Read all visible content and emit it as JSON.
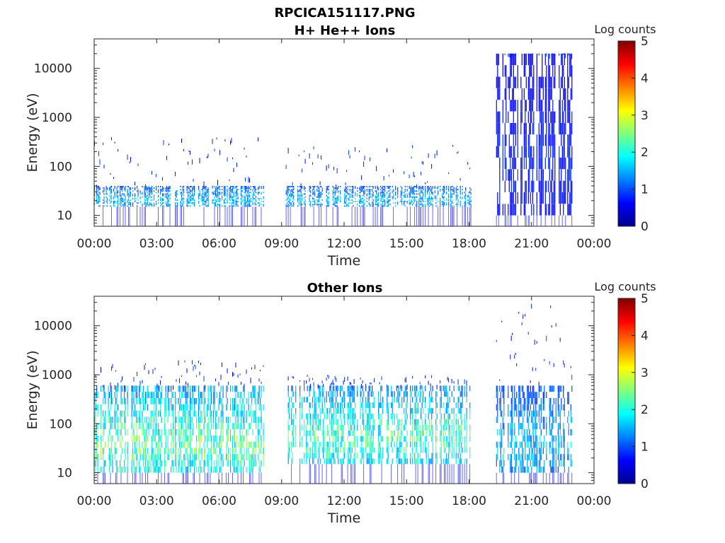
{
  "figure": {
    "title_line1": "RPCICA151117.PNG",
    "title_line2": "H+ He++ Ions"
  },
  "chart_data": [
    {
      "type": "heatmap",
      "title": "H+ He++ Ions",
      "xlabel": "Time",
      "ylabel": "Energy (eV)",
      "x_range_hours": [
        0,
        24
      ],
      "x_ticks": [
        "00:00",
        "03:00",
        "06:00",
        "09:00",
        "12:00",
        "15:00",
        "18:00",
        "21:00",
        "00:00"
      ],
      "y_scale": "log",
      "y_range": [
        6,
        40000
      ],
      "y_ticks": [
        10,
        100,
        1000,
        10000
      ],
      "y_tick_labels": [
        "10",
        "100",
        "1000",
        "10000"
      ],
      "colorbar": {
        "label": "Log counts",
        "range": [
          0,
          5
        ],
        "ticks": [
          "0",
          "1",
          "2",
          "3",
          "4",
          "5"
        ],
        "colormap": "jet"
      },
      "data_gaps_hours": [
        [
          8.15,
          9.2
        ],
        [
          18.1,
          19.3
        ],
        [
          23.0,
          24
        ]
      ],
      "segments": [
        {
          "t_start": 0.0,
          "t_end": 8.15,
          "e_low": 15,
          "e_high": 40,
          "peak_log_counts": 2.0,
          "sparse_e_high": 400
        },
        {
          "t_start": 9.2,
          "t_end": 18.1,
          "e_low": 15,
          "e_high": 40,
          "peak_log_counts": 2.0,
          "sparse_e_high": 300
        },
        {
          "t_start": 19.3,
          "t_end": 23.0,
          "e_low": 10,
          "e_high": 20000,
          "peak_log_counts": 1.0,
          "sparse_e_high": 20000
        }
      ]
    },
    {
      "type": "heatmap",
      "title": "Other Ions",
      "xlabel": "Time",
      "ylabel": "Energy (eV)",
      "x_range_hours": [
        0,
        24
      ],
      "x_ticks": [
        "00:00",
        "03:00",
        "06:00",
        "09:00",
        "12:00",
        "15:00",
        "18:00",
        "21:00",
        "00:00"
      ],
      "y_scale": "log",
      "y_range": [
        6,
        40000
      ],
      "y_ticks": [
        10,
        100,
        1000,
        10000
      ],
      "y_tick_labels": [
        "10",
        "100",
        "1000",
        "10000"
      ],
      "colorbar": {
        "label": "Log counts",
        "range": [
          0,
          5
        ],
        "ticks": [
          "0",
          "1",
          "2",
          "3",
          "4",
          "5"
        ],
        "colormap": "jet"
      },
      "data_gaps_hours": [
        [
          8.15,
          9.2
        ],
        [
          18.1,
          19.3
        ],
        [
          23.0,
          24
        ]
      ],
      "segments": [
        {
          "t_start": 0.0,
          "t_end": 8.15,
          "e_low": 10,
          "e_high": 600,
          "peak_log_counts": 3.0,
          "sparse_e_high": 2000
        },
        {
          "t_start": 9.2,
          "t_end": 18.1,
          "e_low": 15,
          "e_high": 600,
          "peak_log_counts": 2.8,
          "sparse_e_high": 1000
        },
        {
          "t_start": 19.3,
          "t_end": 23.0,
          "e_low": 10,
          "e_high": 600,
          "peak_log_counts": 2.0,
          "sparse_e_high": 30000
        }
      ]
    }
  ]
}
